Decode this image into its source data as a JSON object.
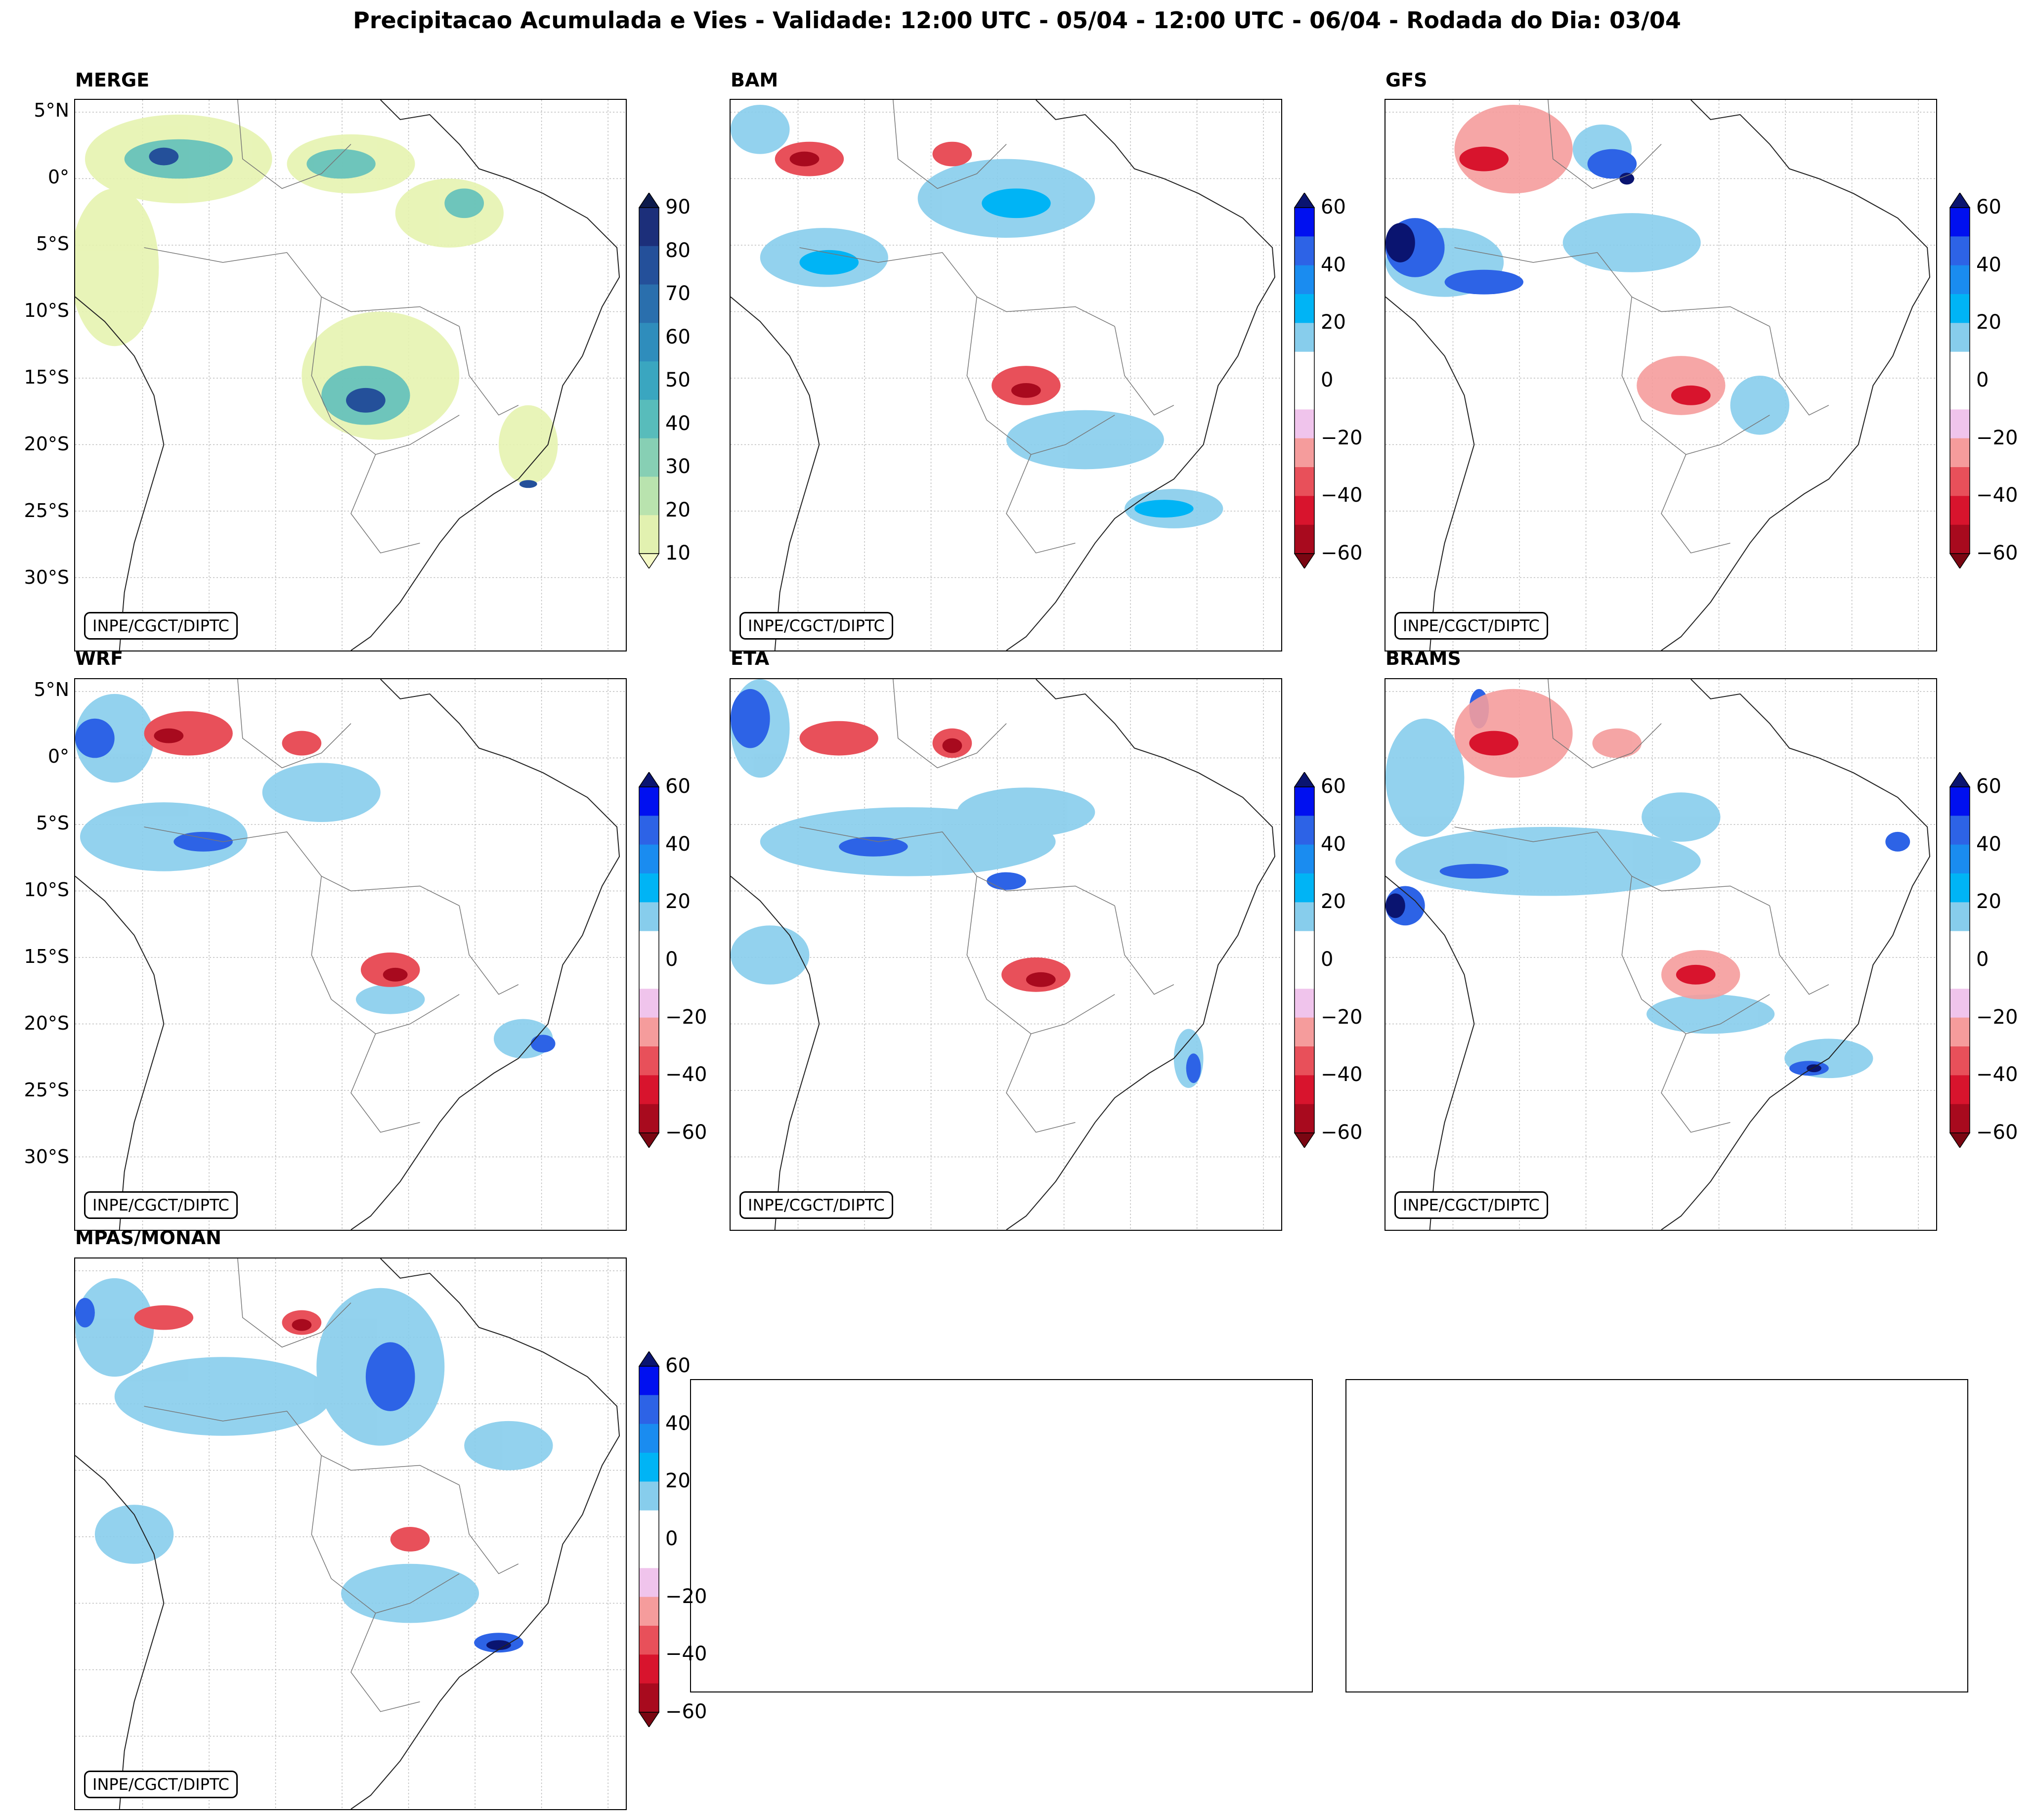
{
  "title": "Precipitacao Acumulada e Vies - Validade: 12:00 UTC - 05/04 - 12:00 UTC - 06/04 - Rodada do Dia: 03/04",
  "credit": "INPE/CGCT/DIPTC",
  "lat_labels": [
    "5°N",
    "0°",
    "5°S",
    "10°S",
    "15°S",
    "20°S",
    "25°S",
    "30°S"
  ],
  "panels": [
    {
      "name": "MERGE",
      "type": "precip"
    },
    {
      "name": "BAM",
      "type": "bias"
    },
    {
      "name": "GFS",
      "type": "bias"
    },
    {
      "name": "WRF",
      "type": "bias"
    },
    {
      "name": "ETA",
      "type": "bias"
    },
    {
      "name": "BRAMS",
      "type": "bias"
    },
    {
      "name": "MPAS/MONAN",
      "type": "bias"
    }
  ],
  "precip_scale": {
    "ticks": [
      "90",
      "80",
      "70",
      "60",
      "50",
      "40",
      "30",
      "20",
      "10"
    ],
    "colors": [
      "#0d1b4c",
      "#1c2f7a",
      "#24509a",
      "#2a6fad",
      "#2f8dbc",
      "#3aa6c0",
      "#58bcbb",
      "#87cfb4",
      "#b9e3ae",
      "#e2f1b0",
      "#f5f9c6"
    ]
  },
  "bias_scale": {
    "ticks": [
      "60",
      "40",
      "20",
      "0",
      "−20",
      "−40",
      "−60"
    ],
    "colors": [
      "#0a1470",
      "#0010f0",
      "#2d63e6",
      "#1a8cf0",
      "#00b4f5",
      "#87cdec",
      "#ffffff",
      "#ffffff",
      "#f0c4ec",
      "#f59c9c",
      "#e8505a",
      "#d8142d",
      "#a80a1e",
      "#7a0612"
    ]
  }
}
